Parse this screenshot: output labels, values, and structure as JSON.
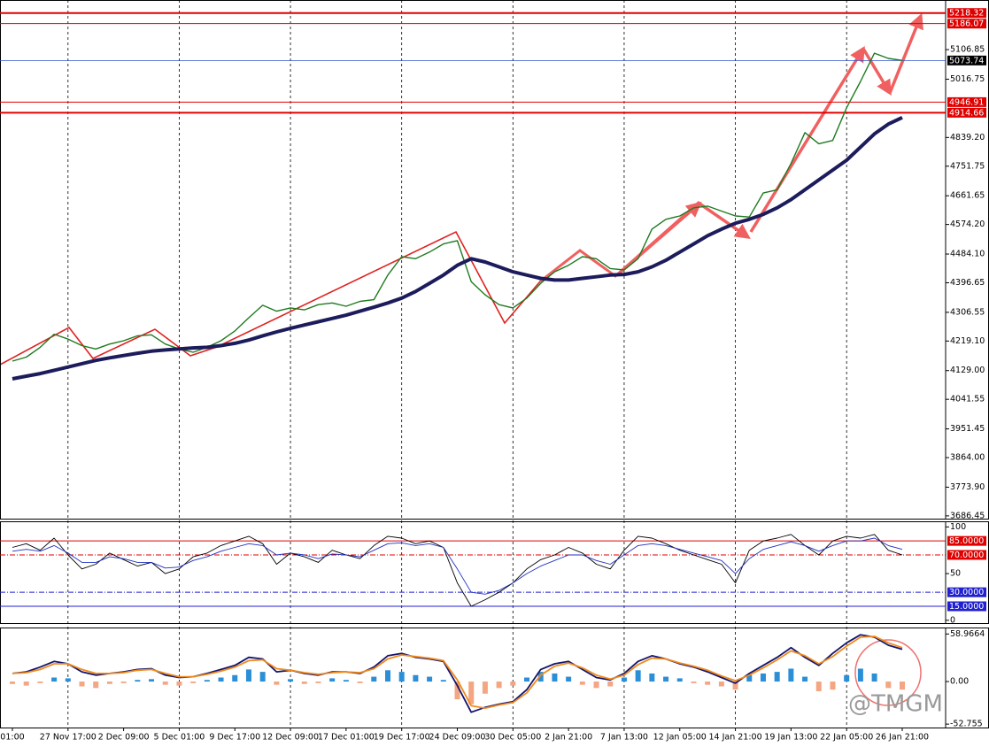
{
  "chart_data": [
    {
      "type": "line",
      "categories": [
        "01:00",
        null,
        null,
        null,
        "27 Nov 17:00",
        null,
        null,
        null,
        "2 Dec 09:00",
        null,
        null,
        null,
        "5 Dec 01:00",
        null,
        null,
        null,
        "9 Dec 17:00",
        null,
        null,
        null,
        "12 Dec 09:00",
        null,
        null,
        null,
        "17 Dec 01:00",
        null,
        null,
        null,
        "19 Dec 17:00",
        null,
        null,
        null,
        "24 Dec 09:00",
        null,
        null,
        null,
        "30 Dec 05:00",
        null,
        null,
        null,
        "2 Jan 21:00",
        null,
        null,
        null,
        "7 Jan 13:00",
        null,
        null,
        null,
        "12 Jan 05:00",
        null,
        null,
        null,
        "14 Jan 21:00",
        null,
        null,
        null,
        "19 Jan 13:00",
        null,
        null,
        null,
        "22 Jan 05:00",
        null,
        null,
        null,
        "26 Jan 21:00"
      ],
      "series": [
        {
          "color": "#1f7a1f",
          "line_width": 1.4,
          "values": [
            4158,
            4170,
            4200,
            4240,
            4225,
            4205,
            4195,
            4210,
            4220,
            4235,
            4238,
            4210,
            4195,
            4185,
            4200,
            4220,
            4250,
            4290,
            4328,
            4310,
            4320,
            4314,
            4330,
            4335,
            4325,
            4340,
            4345,
            4420,
            4476,
            4470,
            4490,
            4515,
            4525,
            4400,
            4360,
            4330,
            4320,
            4350,
            4395,
            4430,
            4450,
            4476,
            4470,
            4440,
            4436,
            4470,
            4560,
            4590,
            4600,
            4625,
            4630,
            4615,
            4600,
            4597,
            4670,
            4680,
            4760,
            4854,
            4820,
            4830,
            4930,
            5010,
            5096,
            5080,
            5073.74
          ]
        },
        {
          "color": "#1c1c5c",
          "line_width": 4,
          "values": [
            4104,
            4112,
            4120,
            4130,
            4140,
            4150,
            4160,
            4168,
            4175,
            4182,
            4188,
            4192,
            4195,
            4198,
            4200,
            4205,
            4212,
            4222,
            4235,
            4247,
            4258,
            4268,
            4278,
            4288,
            4298,
            4310,
            4322,
            4335,
            4350,
            4370,
            4395,
            4420,
            4450,
            4470,
            4460,
            4445,
            4430,
            4420,
            4410,
            4405,
            4405,
            4410,
            4415,
            4420,
            4422,
            4430,
            4445,
            4465,
            4490,
            4515,
            4540,
            4560,
            4578,
            4590,
            4605,
            4625,
            4650,
            4680,
            4710,
            4740,
            4770,
            4810,
            4850,
            4880,
            4900
          ]
        }
      ],
      "ylim": [
        3678,
        5258
      ],
      "yticks": [
        5106.85,
        5016.75,
        {
          "value": 4839.2,
          "label": "4839.20"
        },
        4751.75,
        4661.65,
        {
          "value": 4574.2,
          "label": "4574.20"
        },
        {
          "value": 4484.1,
          "label": "4484.10"
        },
        4396.65,
        4306.55,
        {
          "value": 4219.1,
          "label": "4219.10"
        },
        {
          "value": 4129,
          "label": "4129.00"
        },
        4041.55,
        3951.45,
        {
          "value": 3864,
          "label": "3864.00"
        },
        {
          "value": 3773.9,
          "label": "3773.90"
        },
        3686.45
      ],
      "levels": [
        {
          "value": 5218.32,
          "color": "#e00000",
          "line_width": 2
        },
        {
          "value": 5186.07,
          "color": "#e00000",
          "line_width": 1
        },
        {
          "value": 5073.74,
          "color": "#000000",
          "line_color": "#3050d0",
          "line_width": 0.8
        },
        {
          "value": 4946.91,
          "color": "#e00000",
          "line_width": 1
        },
        {
          "value": 4914.66,
          "color": "#e00000",
          "line_width": 2
        }
      ]
    },
    {
      "type": "line",
      "series": [
        {
          "color": "#000000",
          "line_width": 0.9,
          "values": [
            78,
            82,
            75,
            88,
            70,
            55,
            60,
            72,
            65,
            58,
            62,
            50,
            55,
            68,
            72,
            80,
            85,
            90,
            82,
            60,
            72,
            68,
            62,
            75,
            70,
            66,
            80,
            90,
            88,
            82,
            85,
            78,
            40,
            15,
            22,
            30,
            40,
            55,
            65,
            70,
            78,
            72,
            60,
            55,
            75,
            90,
            88,
            82,
            75,
            70,
            65,
            60,
            40,
            75,
            85,
            88,
            92,
            80,
            70,
            85,
            90,
            88,
            92,
            75,
            70
          ]
        },
        {
          "color": "#2030c0",
          "line_width": 0.9,
          "values": [
            74,
            76,
            74,
            80,
            72,
            62,
            62,
            68,
            66,
            62,
            62,
            56,
            57,
            64,
            68,
            74,
            78,
            82,
            80,
            70,
            72,
            70,
            66,
            71,
            70,
            68,
            75,
            82,
            83,
            80,
            82,
            78,
            55,
            30,
            28,
            32,
            40,
            50,
            58,
            64,
            70,
            70,
            64,
            60,
            70,
            80,
            82,
            80,
            76,
            72,
            68,
            64,
            50,
            66,
            76,
            80,
            84,
            80,
            74,
            80,
            85,
            85,
            88,
            80,
            76
          ]
        }
      ],
      "ylim": [
        -3,
        106
      ],
      "yticks": [
        100,
        50,
        0
      ],
      "levels": [
        {
          "value": 85,
          "label": "85.0000",
          "color": "#e00000",
          "dash": "none"
        },
        {
          "value": 70,
          "label": "70.0000",
          "color": "#e00000",
          "dash": "6 2 1 2"
        },
        {
          "value": 30,
          "label": "30.0000",
          "color": "#2020d0",
          "dash": "6 2 1 2"
        },
        {
          "value": 15,
          "label": "15.0000",
          "color": "#2020d0",
          "dash": "none"
        }
      ]
    },
    {
      "type": "bar",
      "values": [
        -3,
        -5,
        -2,
        5,
        4,
        -6,
        -8,
        -3,
        -2,
        2,
        3,
        -4,
        -5,
        -2,
        2,
        5,
        8,
        15,
        12,
        -4,
        3,
        -3,
        -2,
        4,
        2,
        -2,
        6,
        14,
        12,
        8,
        6,
        2,
        -22,
        -28,
        -15,
        -8,
        -5,
        5,
        12,
        10,
        6,
        -4,
        -8,
        -6,
        5,
        14,
        10,
        6,
        4,
        -2,
        -4,
        -6,
        -10,
        8,
        10,
        12,
        16,
        6,
        -12,
        -10,
        8,
        16,
        10,
        -8,
        -10
      ],
      "positive_color": "#2a8fd6",
      "negative_color": "#f4a582",
      "series": [
        {
          "color": "#14146e",
          "line_width": 1.8,
          "values": [
            10,
            12,
            18,
            25,
            22,
            12,
            8,
            10,
            12,
            15,
            16,
            8,
            5,
            6,
            10,
            15,
            20,
            30,
            28,
            12,
            14,
            10,
            8,
            12,
            12,
            10,
            18,
            32,
            35,
            30,
            28,
            25,
            -5,
            -38,
            -32,
            -28,
            -25,
            -10,
            15,
            22,
            25,
            15,
            5,
            2,
            10,
            25,
            32,
            28,
            22,
            18,
            12,
            5,
            -2,
            10,
            20,
            30,
            42,
            30,
            20,
            35,
            48,
            58,
            55,
            45,
            40
          ]
        },
        {
          "color": "#f08a1c",
          "line_width": 1.8,
          "values": [
            10,
            11,
            15,
            22,
            22,
            15,
            10,
            10,
            11,
            14,
            15,
            10,
            6,
            6,
            9,
            13,
            18,
            26,
            27,
            16,
            14,
            11,
            9,
            11,
            12,
            11,
            16,
            28,
            33,
            31,
            29,
            26,
            2,
            -30,
            -33,
            -29,
            -26,
            -14,
            8,
            19,
            23,
            17,
            8,
            3,
            8,
            21,
            29,
            28,
            23,
            19,
            14,
            7,
            1,
            8,
            17,
            27,
            38,
            32,
            22,
            31,
            44,
            55,
            56,
            48,
            42
          ]
        }
      ],
      "ylim": [
        -57,
        67
      ],
      "yticks": [
        58.9664,
        {
          "value": 0,
          "label": "0.00"
        },
        -52.755
      ]
    }
  ],
  "watermark": "@TMGM"
}
